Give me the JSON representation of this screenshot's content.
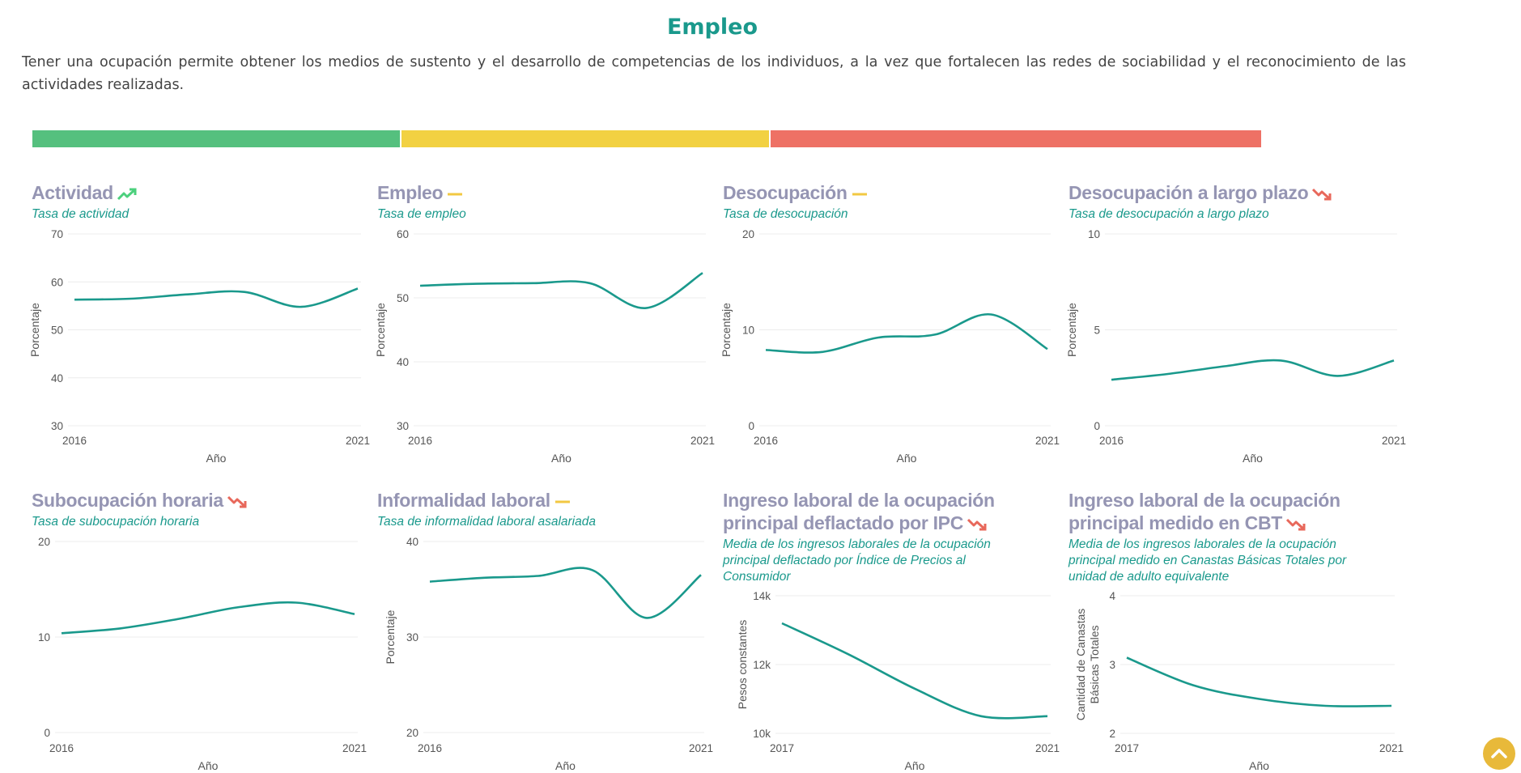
{
  "page": {
    "title": "Empleo",
    "intro": "Tener una ocupación permite obtener los medios de sustento y el desarrollo de competencias de los individuos, a la vez que fortalecen las redes de sociabilidad y el reconocimiento de las actividades realizadas."
  },
  "status_bar": [
    {
      "status": "green",
      "color": "#55c07e",
      "fraction": 0.3
    },
    {
      "status": "yellow",
      "color": "#f2d142",
      "fraction": 0.3
    },
    {
      "status": "red",
      "color": "#ee7165",
      "fraction": 0.4
    }
  ],
  "trend_colors": {
    "up": "#4cd07d",
    "flat": "#f2c842",
    "down": "#e8685b"
  },
  "line_color": "#1a998c",
  "chart_data": [
    {
      "type": "line",
      "title": "Actividad",
      "trend": "up",
      "subtitle": "Tasa de actividad",
      "xlabel": "Año",
      "ylabel": "Porcentaje",
      "ylim": [
        30,
        70
      ],
      "yticks": [
        "30",
        "40",
        "50",
        "60",
        "70"
      ],
      "xticks": [
        "2016",
        "2021"
      ],
      "x": [
        2016,
        2017,
        2018,
        2019,
        2020,
        2021
      ],
      "values": [
        56.3,
        56.5,
        57.4,
        57.9,
        54.8,
        58.6
      ]
    },
    {
      "type": "line",
      "title": "Empleo",
      "trend": "flat",
      "subtitle": "Tasa de empleo",
      "xlabel": "Año",
      "ylabel": "Porcentaje",
      "ylim": [
        30,
        60
      ],
      "yticks": [
        "30",
        "40",
        "50",
        "60"
      ],
      "xticks": [
        "2016",
        "2021"
      ],
      "x": [
        2016,
        2017,
        2018,
        2019,
        2020,
        2021
      ],
      "values": [
        51.9,
        52.2,
        52.3,
        52.3,
        48.4,
        53.9
      ]
    },
    {
      "type": "line",
      "title": "Desocupación",
      "trend": "flat",
      "subtitle": "Tasa de desocupación",
      "xlabel": "Año",
      "ylabel": "Porcentaje",
      "ylim": [
        0,
        20
      ],
      "yticks": [
        "0",
        "10",
        "20"
      ],
      "xticks": [
        "2016",
        "2021"
      ],
      "x": [
        2016,
        2017,
        2018,
        2019,
        2020,
        2021
      ],
      "values": [
        7.9,
        7.7,
        9.2,
        9.5,
        11.6,
        8.0
      ]
    },
    {
      "type": "line",
      "title": "Desocupación a largo plazo",
      "trend": "down",
      "subtitle": "Tasa de desocupación a largo plazo",
      "xlabel": "Año",
      "ylabel": "Porcentaje",
      "ylim": [
        0,
        10
      ],
      "yticks": [
        "0",
        "5",
        "10"
      ],
      "xticks": [
        "2016",
        "2021"
      ],
      "x": [
        2016,
        2017,
        2018,
        2019,
        2020,
        2021
      ],
      "values": [
        2.4,
        2.7,
        3.1,
        3.4,
        2.6,
        3.4
      ]
    },
    {
      "type": "line",
      "title": "Subocupación horaria",
      "trend": "down",
      "subtitle": "Tasa de subocupación horaria",
      "xlabel": "Año",
      "ylabel": "",
      "ylim": [
        0,
        20
      ],
      "yticks": [
        "0",
        "10",
        "20"
      ],
      "xticks": [
        "2016",
        "2021"
      ],
      "x": [
        2016,
        2017,
        2018,
        2019,
        2020,
        2021
      ],
      "values": [
        10.4,
        10.9,
        11.9,
        13.1,
        13.6,
        12.4
      ]
    },
    {
      "type": "line",
      "title": "Informalidad laboral",
      "trend": "flat",
      "subtitle": "Tasa de informalidad laboral asalariada",
      "xlabel": "Año",
      "ylabel": "Porcentaje",
      "ylim": [
        20,
        40
      ],
      "yticks": [
        "20",
        "30",
        "40"
      ],
      "xticks": [
        "2016",
        "2021"
      ],
      "x": [
        2016,
        2017,
        2018,
        2019,
        2020,
        2021
      ],
      "values": [
        35.8,
        36.2,
        36.4,
        37.0,
        32.0,
        36.5
      ]
    },
    {
      "type": "line",
      "title": "Ingreso laboral de la ocupación principal deflactado por IPC",
      "trend": "down",
      "subtitle": "Media de los ingresos laborales de la ocupación principal deflactado por Índice de Precios al Consumidor",
      "xlabel": "Año",
      "ylabel": "Pesos constantes",
      "ylim": [
        10000,
        14000
      ],
      "yticks": [
        "10k",
        "12k",
        "14k"
      ],
      "xticks": [
        "2017",
        "2021"
      ],
      "x": [
        2017,
        2018,
        2019,
        2020,
        2021
      ],
      "values": [
        13200,
        12300,
        11300,
        10500,
        10500
      ]
    },
    {
      "type": "line",
      "title": "Ingreso laboral de la ocupación principal medido en CBT",
      "trend": "down",
      "subtitle": "Media de los ingresos laborales de la ocupación principal medido en Canastas Básicas Totales por unidad de adulto equivalente",
      "xlabel": "Año",
      "ylabel": "Cantidad de Canastas Básicas Totales",
      "ylim": [
        2,
        4
      ],
      "yticks": [
        "2",
        "3",
        "4"
      ],
      "xticks": [
        "2017",
        "2021"
      ],
      "x": [
        2017,
        2018,
        2019,
        2020,
        2021
      ],
      "values": [
        3.1,
        2.7,
        2.5,
        2.4,
        2.4
      ]
    }
  ]
}
